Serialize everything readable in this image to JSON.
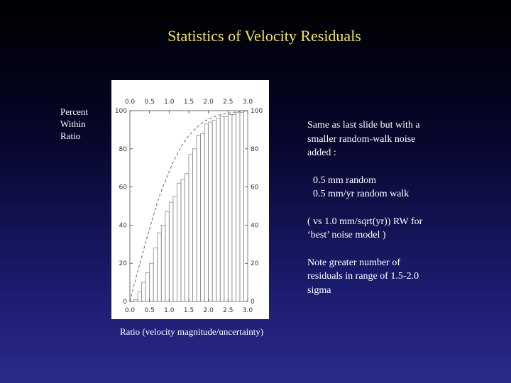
{
  "slide": {
    "title": "Statistics of Velocity Residuals"
  },
  "notes": {
    "p1": [
      "Same as last slide but with a",
      "smaller random-walk noise",
      "added :"
    ],
    "p2": [
      "0.5 mm random",
      "0.5 mm/yr random walk"
    ],
    "p3": [
      "( vs 1.0 mm/sqrt(yr)) RW for",
      "‘best’ noise model )"
    ],
    "p4": [
      "Note greater number of",
      "residuals in range of 1.5-2.0",
      "sigma"
    ]
  },
  "colors": {
    "title": "#f2e64a",
    "text": "#ffffff",
    "bar_stroke": "#888888",
    "curve": "#666666"
  },
  "chart_data": {
    "type": "bar",
    "ylabel": [
      "Percent",
      "Within",
      "Ratio"
    ],
    "xlabel": "Ratio (velocity magnitude/uncertainty)",
    "xlim": [
      0,
      3
    ],
    "ylim": [
      0,
      100
    ],
    "x_ticks": [
      "0.0",
      "0.5",
      "1.0",
      "1.5",
      "2.0",
      "2.5",
      "3.0"
    ],
    "y_ticks": [
      "0",
      "20",
      "40",
      "60",
      "80",
      "100"
    ],
    "bin_width": 0.1,
    "series": [
      {
        "values": [
          0,
          1,
          5,
          10,
          15,
          20,
          28,
          36,
          40,
          47,
          52,
          55,
          62,
          64,
          67,
          77,
          80,
          87,
          88,
          93,
          94,
          95,
          96,
          97,
          97,
          98,
          98,
          99,
          99,
          100
        ]
      },
      {
        "values": [
          0,
          8,
          16,
          23,
          31,
          38,
          45,
          52,
          58,
          63,
          68,
          73,
          77,
          81,
          84,
          87,
          89,
          91,
          93,
          94.5,
          95.5,
          96.5,
          97.2,
          97.8,
          98.3,
          98.7,
          99,
          99.3,
          99.5,
          99.7,
          99.8
        ]
      }
    ]
  }
}
